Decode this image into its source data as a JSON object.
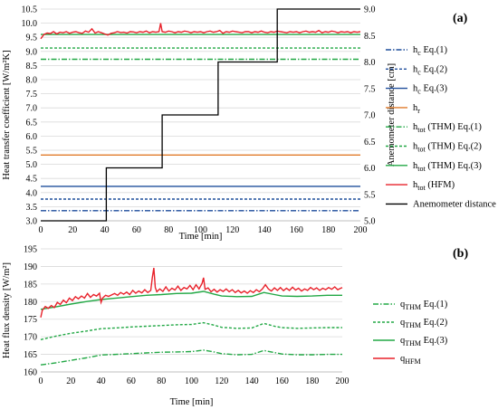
{
  "chart_data": [
    {
      "type": "line",
      "panel_label": "(a)",
      "xlabel": "Time [min]",
      "ylabel": "Heat transfer coefficient [W/m²K]",
      "ylabel2": "Anemometer distance [cm]",
      "xlim": [
        0,
        200
      ],
      "ylim": [
        3.0,
        10.5
      ],
      "y2lim": [
        5.0,
        9.0
      ],
      "xticks": [
        "0",
        "20",
        "40",
        "60",
        "80",
        "100",
        "120",
        "140",
        "160",
        "180",
        "200"
      ],
      "yticks": [
        "3.0",
        "3.5",
        "4.0",
        "4.5",
        "5.0",
        "5.5",
        "6.0",
        "6.5",
        "7.0",
        "7.5",
        "8.0",
        "8.5",
        "9.0",
        "9.5",
        "10.0",
        "10.5"
      ],
      "y2ticks": [
        "5.0",
        "5.5",
        "6.0",
        "6.5",
        "7.0",
        "7.5",
        "8.0",
        "8.5",
        "9.0"
      ],
      "legend_position": "right",
      "grid": "horizontal",
      "series": [
        {
          "name": "hᴄ Eq.(1)",
          "color": "#1f4e9c",
          "dash": "6,2,1.5,2",
          "values": [
            3.36,
            3.36
          ]
        },
        {
          "name": "hᴄ Eq.(2)",
          "color": "#1f4e9c",
          "dash": "3,2",
          "values": [
            3.77,
            3.77
          ]
        },
        {
          "name": "hᴄ Eq.(3)",
          "color": "#1f4e9c",
          "dash": "",
          "values": [
            4.22,
            4.22
          ]
        },
        {
          "name": "hᵣ",
          "color": "#e07b2a",
          "dash": "",
          "values": [
            5.33,
            5.33
          ]
        },
        {
          "name": "hₜₒₜ (THM) Eq.(1)",
          "color": "#22a845",
          "dash": "6,2,1.5,2",
          "values": [
            8.72,
            8.72
          ]
        },
        {
          "name": "hₜₒₜ (THM) Eq.(2)",
          "color": "#22a845",
          "dash": "3,2",
          "values": [
            9.12,
            9.12
          ]
        },
        {
          "name": "hₜₒₜ (THM) Eq.(3)",
          "color": "#22a845",
          "dash": "",
          "values": [
            9.6,
            9.6
          ]
        },
        {
          "name": "hₜₒₜ (HFM)",
          "color": "#e8212a",
          "dash": "",
          "x": [
            0,
            2,
            4,
            6,
            8,
            10,
            12,
            14,
            16,
            18,
            20,
            22,
            24,
            26,
            28,
            30,
            32,
            34,
            36,
            38,
            40,
            42,
            44,
            46,
            48,
            50,
            52,
            54,
            56,
            58,
            60,
            62,
            64,
            66,
            68,
            70,
            72,
            74,
            75,
            76,
            78,
            80,
            82,
            84,
            86,
            88,
            90,
            92,
            94,
            96,
            98,
            100,
            102,
            104,
            106,
            108,
            110,
            112,
            114,
            116,
            118,
            120,
            122,
            124,
            126,
            128,
            130,
            132,
            134,
            136,
            138,
            140,
            142,
            144,
            146,
            148,
            150,
            152,
            154,
            156,
            158,
            160,
            162,
            164,
            166,
            168,
            170,
            172,
            174,
            176,
            178,
            180,
            182,
            184,
            186,
            188,
            190,
            192,
            194,
            196,
            198,
            200
          ],
          "values": [
            9.45,
            9.6,
            9.65,
            9.63,
            9.7,
            9.62,
            9.68,
            9.66,
            9.7,
            9.64,
            9.68,
            9.7,
            9.66,
            9.64,
            9.72,
            9.68,
            9.8,
            9.65,
            9.7,
            9.66,
            9.62,
            9.58,
            9.64,
            9.66,
            9.7,
            9.67,
            9.68,
            9.65,
            9.7,
            9.69,
            9.66,
            9.7,
            9.68,
            9.72,
            9.66,
            9.7,
            9.68,
            9.7,
            10.0,
            9.7,
            9.68,
            9.72,
            9.7,
            9.66,
            9.7,
            9.68,
            9.72,
            9.7,
            9.66,
            9.7,
            9.68,
            9.7,
            9.66,
            9.7,
            9.72,
            9.68,
            9.7,
            9.74,
            9.64,
            9.7,
            9.68,
            9.72,
            9.7,
            9.68,
            9.66,
            9.7,
            9.7,
            9.66,
            9.7,
            9.68,
            9.72,
            9.68,
            9.66,
            9.7,
            9.68,
            9.72,
            9.7,
            9.68,
            9.66,
            9.7,
            9.68,
            9.7,
            9.66,
            9.7,
            9.72,
            9.68,
            9.7,
            9.68,
            9.74,
            9.66,
            9.7,
            9.68,
            9.72,
            9.7,
            9.66,
            9.7,
            9.68,
            9.7,
            9.66,
            9.7,
            9.68,
            9.7
          ]
        },
        {
          "name": "Anemometer distance",
          "color": "#000000",
          "dash": "",
          "axis": "right",
          "x": [
            0,
            41,
            41,
            76,
            76,
            111,
            111,
            148,
            148,
            200
          ],
          "values": [
            5.0,
            5.0,
            6.0,
            6.0,
            7.0,
            7.0,
            8.0,
            8.0,
            9.0,
            9.0
          ]
        }
      ]
    },
    {
      "type": "line",
      "panel_label": "(b)",
      "xlabel": "Time [min]",
      "ylabel": "Heat flux density [W/m²]",
      "xlim": [
        0,
        200
      ],
      "ylim": [
        160,
        195
      ],
      "xticks": [
        "0",
        "20",
        "40",
        "60",
        "80",
        "100",
        "120",
        "140",
        "160",
        "180",
        "200"
      ],
      "yticks": [
        "160",
        "165",
        "170",
        "175",
        "180",
        "185",
        "190",
        "195"
      ],
      "legend_position": "right",
      "grid": "horizontal",
      "series": [
        {
          "name": "qℤʜᴍ Eq.(1)",
          "color": "#22a845",
          "dash": "6,2,1.5,2",
          "x": [
            0,
            10,
            20,
            30,
            40,
            50,
            60,
            70,
            80,
            90,
            100,
            108,
            115,
            120,
            130,
            140,
            148,
            155,
            160,
            170,
            180,
            190,
            200
          ],
          "values": [
            162.0,
            162.6,
            163.3,
            164.0,
            164.8,
            165.0,
            165.2,
            165.4,
            165.6,
            165.7,
            165.8,
            166.2,
            165.7,
            165.2,
            164.9,
            165.0,
            166.1,
            165.5,
            165.1,
            164.9,
            164.9,
            165.0,
            165.0
          ]
        },
        {
          "name": "qℤʜᴍ Eq.(2)",
          "color": "#22a845",
          "dash": "3,2",
          "x": [
            0,
            10,
            20,
            30,
            40,
            50,
            60,
            70,
            80,
            90,
            100,
            108,
            115,
            120,
            130,
            140,
            148,
            155,
            160,
            170,
            180,
            190,
            200
          ],
          "values": [
            169.2,
            170.2,
            171.0,
            171.6,
            172.3,
            172.5,
            172.8,
            173.0,
            173.2,
            173.4,
            173.5,
            174.0,
            173.3,
            172.7,
            172.4,
            172.5,
            173.8,
            173.0,
            172.6,
            172.4,
            172.5,
            172.6,
            172.6
          ]
        },
        {
          "name": "qℤʜᴍ Eq.(3)",
          "color": "#22a845",
          "dash": "",
          "x": [
            0,
            10,
            20,
            30,
            40,
            50,
            60,
            70,
            80,
            90,
            100,
            108,
            115,
            120,
            130,
            140,
            148,
            155,
            160,
            170,
            180,
            190,
            200
          ],
          "values": [
            177.8,
            178.5,
            179.3,
            180.0,
            180.6,
            181.0,
            181.4,
            181.8,
            182.0,
            182.3,
            182.4,
            182.9,
            182.1,
            181.6,
            181.4,
            181.5,
            182.6,
            182.0,
            181.6,
            181.5,
            181.6,
            181.8,
            181.8
          ]
        },
        {
          "name": "qₕₒₘ",
          "color": "#e8212a",
          "dash": "",
          "x": [
            0,
            1,
            3,
            5,
            7,
            9,
            11,
            13,
            15,
            17,
            19,
            21,
            23,
            25,
            27,
            29,
            31,
            33,
            35,
            37,
            39,
            40,
            41,
            43,
            45,
            47,
            49,
            51,
            53,
            55,
            57,
            59,
            61,
            63,
            65,
            67,
            69,
            71,
            73,
            74,
            75,
            76,
            77,
            79,
            81,
            83,
            85,
            87,
            89,
            91,
            93,
            95,
            97,
            99,
            101,
            103,
            105,
            107,
            108,
            109,
            111,
            113,
            115,
            117,
            119,
            121,
            123,
            125,
            127,
            129,
            131,
            133,
            135,
            137,
            139,
            141,
            143,
            145,
            147,
            149,
            151,
            153,
            155,
            157,
            159,
            161,
            163,
            165,
            167,
            169,
            171,
            173,
            175,
            177,
            179,
            181,
            183,
            185,
            187,
            189,
            191,
            193,
            195,
            197,
            199,
            200
          ],
          "values": [
            175.5,
            177.5,
            178.6,
            178.1,
            178.9,
            178.3,
            179.8,
            179.2,
            180.4,
            179.7,
            181.0,
            180.3,
            181.4,
            180.8,
            181.6,
            181.0,
            182.3,
            181.2,
            182.0,
            181.6,
            182.4,
            179.8,
            181.0,
            181.8,
            181.5,
            181.9,
            182.3,
            181.8,
            182.6,
            182.1,
            182.7,
            182.0,
            183.2,
            182.4,
            183.0,
            182.5,
            183.4,
            182.6,
            183.2,
            186.8,
            189.6,
            184.0,
            182.8,
            183.6,
            182.9,
            184.2,
            183.0,
            183.8,
            183.3,
            184.4,
            183.2,
            184.0,
            183.6,
            184.6,
            183.4,
            184.8,
            183.6,
            185.2,
            186.8,
            183.5,
            183.9,
            182.8,
            183.5,
            182.7,
            183.4,
            182.9,
            183.6,
            182.8,
            183.4,
            182.6,
            183.2,
            182.5,
            183.0,
            182.4,
            183.1,
            182.6,
            183.4,
            182.8,
            183.6,
            184.8,
            183.6,
            183.0,
            183.9,
            183.2,
            184.0,
            183.1,
            183.8,
            183.2,
            184.1,
            183.3,
            183.8,
            183.0,
            183.6,
            183.2,
            184.0,
            183.4,
            183.9,
            183.2,
            183.8,
            183.4,
            184.0,
            183.5,
            184.2,
            183.4,
            183.8,
            184.0
          ]
        }
      ]
    }
  ]
}
